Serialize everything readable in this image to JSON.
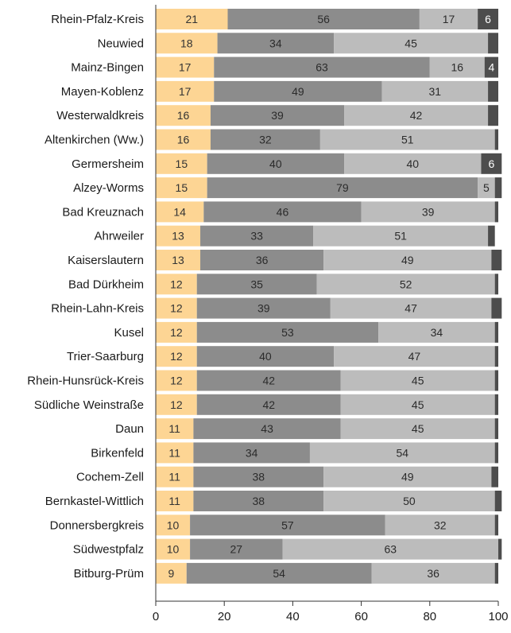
{
  "chart_data": {
    "type": "bar",
    "orientation": "horizontal",
    "stacked": true,
    "xlim": [
      0,
      100
    ],
    "xticks": [
      "0",
      "20",
      "40",
      "60",
      "80",
      "100"
    ],
    "grid": false,
    "legend": "none",
    "categories": [
      "Rhein-Pfalz-Kreis",
      "Neuwied",
      "Mainz-Bingen",
      "Mayen-Koblenz",
      "Westerwaldkreis",
      "Altenkirchen (Ww.)",
      "Germersheim",
      "Alzey-Worms",
      "Bad Kreuznach",
      "Ahrweiler",
      "Kaiserslautern",
      "Bad Dürkheim",
      "Rhein-Lahn-Kreis",
      "Kusel",
      "Trier-Saarburg",
      "Rhein-Hunsrück-Kreis",
      "Südliche Weinstraße",
      "Daun",
      "Birkenfeld",
      "Cochem-Zell",
      "Bernkastel-Wittlich",
      "Donnersbergkreis",
      "Südwestpfalz",
      "Bitburg-Prüm"
    ],
    "series": [
      {
        "color": "#fdd594",
        "label_color": "#333333",
        "values": [
          21,
          18,
          17,
          17,
          16,
          16,
          15,
          15,
          14,
          13,
          13,
          12,
          12,
          12,
          12,
          12,
          12,
          11,
          11,
          11,
          11,
          10,
          10,
          9
        ]
      },
      {
        "color": "#8c8c8c",
        "label_color": "#2b2b2b",
        "values": [
          56,
          34,
          63,
          49,
          39,
          32,
          40,
          79,
          46,
          33,
          36,
          35,
          39,
          53,
          40,
          42,
          42,
          43,
          34,
          38,
          38,
          57,
          27,
          54
        ]
      },
      {
        "color": "#bcbcbc",
        "label_color": "#2b2b2b",
        "values": [
          17,
          45,
          16,
          31,
          42,
          51,
          40,
          5,
          39,
          51,
          49,
          52,
          47,
          34,
          47,
          45,
          45,
          45,
          54,
          49,
          50,
          32,
          63,
          36
        ]
      },
      {
        "color": "#4d4d4d",
        "label_color": "#ffffff",
        "values": [
          6,
          3,
          4,
          3,
          3,
          1,
          6,
          2,
          1,
          2,
          3,
          1,
          3,
          1,
          1,
          1,
          1,
          1,
          1,
          2,
          2,
          1,
          1,
          1
        ],
        "labels": [
          "6",
          "",
          "4",
          "",
          "",
          "",
          "6",
          "",
          "",
          "",
          "",
          "",
          "",
          "",
          "",
          "",
          "",
          "",
          "",
          "",
          "",
          "",
          "",
          ""
        ]
      }
    ]
  }
}
